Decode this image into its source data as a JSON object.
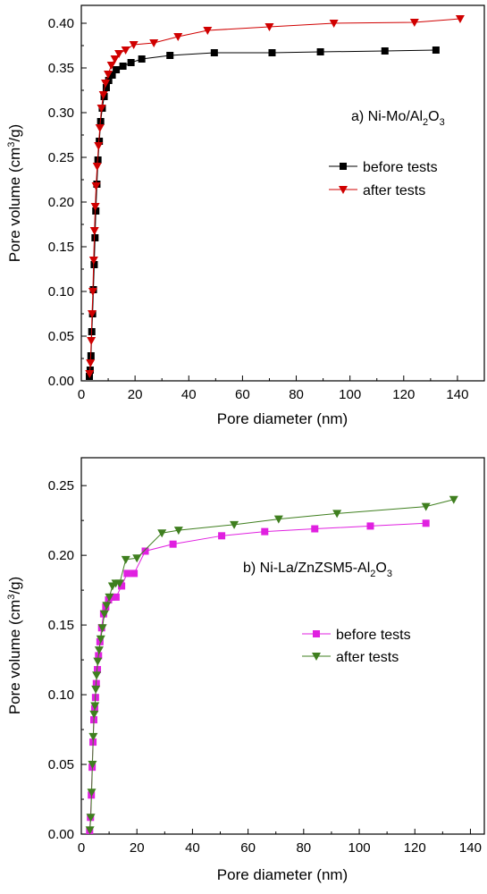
{
  "chart_data": [
    {
      "type": "line",
      "annotation": {
        "prefix": "a) Ni-Mo/Al",
        "sub1": "2",
        "mid": "O",
        "sub2": "3"
      },
      "xlabel": "Pore diameter (nm)",
      "ylabel": {
        "main": "Pore volume (cm",
        "sup": "3",
        "tail": "/g)"
      },
      "xlim": [
        0,
        150
      ],
      "ylim": [
        0,
        0.42
      ],
      "xticks": [
        0,
        20,
        40,
        60,
        80,
        100,
        120,
        140
      ],
      "xtick_labels": [
        "0",
        "20",
        "40",
        "60",
        "80",
        "100",
        "120",
        "140"
      ],
      "yticks": [
        0.0,
        0.05,
        0.1,
        0.15,
        0.2,
        0.25,
        0.3,
        0.35,
        0.4
      ],
      "ytick_labels": [
        "0.00",
        "0.05",
        "0.10",
        "0.15",
        "0.20",
        "0.25",
        "0.30",
        "0.35",
        "0.40"
      ],
      "legend_position": "middle-right",
      "series": [
        {
          "name": "before tests",
          "color": "#000000",
          "marker": "square",
          "x": [
            3.0,
            3.3,
            3.6,
            3.9,
            4.2,
            4.5,
            4.8,
            5.1,
            5.4,
            5.8,
            6.2,
            6.7,
            7.2,
            7.8,
            8.5,
            9.3,
            10.2,
            11.5,
            13.0,
            15.5,
            18.5,
            22.5,
            33.0,
            49.5,
            71.0,
            89.0,
            113.0,
            132.0
          ],
          "y": [
            0.005,
            0.012,
            0.028,
            0.055,
            0.075,
            0.102,
            0.13,
            0.16,
            0.19,
            0.22,
            0.247,
            0.268,
            0.29,
            0.305,
            0.318,
            0.328,
            0.336,
            0.342,
            0.348,
            0.352,
            0.356,
            0.36,
            0.364,
            0.367,
            0.367,
            0.368,
            0.369,
            0.37
          ]
        },
        {
          "name": "after tests",
          "color": "#d00000",
          "marker": "triangle-down",
          "x": [
            3.1,
            3.4,
            3.7,
            4.0,
            4.3,
            4.6,
            4.9,
            5.2,
            5.5,
            5.9,
            6.4,
            6.9,
            7.5,
            8.2,
            9.0,
            10.0,
            11.2,
            12.5,
            14.0,
            16.5,
            19.5,
            27.0,
            36.0,
            47.0,
            70.0,
            94.0,
            124.0,
            141.0
          ],
          "y": [
            0.008,
            0.02,
            0.045,
            0.075,
            0.1,
            0.135,
            0.168,
            0.195,
            0.218,
            0.24,
            0.263,
            0.283,
            0.305,
            0.32,
            0.333,
            0.343,
            0.353,
            0.36,
            0.366,
            0.37,
            0.376,
            0.378,
            0.385,
            0.392,
            0.396,
            0.4,
            0.401,
            0.405
          ]
        }
      ]
    },
    {
      "type": "line",
      "annotation": {
        "prefix": "b) Ni-La/ZnZSM5-Al",
        "sub1": "2",
        "mid": "O",
        "sub2": "3"
      },
      "xlabel": "Pore diameter (nm)",
      "ylabel": {
        "main": "Pore volume (cm",
        "sup": "3",
        "tail": "/g)"
      },
      "xlim": [
        0,
        145
      ],
      "ylim": [
        0,
        0.27
      ],
      "xticks": [
        0,
        20,
        40,
        60,
        80,
        100,
        120,
        140
      ],
      "xtick_labels": [
        "0",
        "20",
        "40",
        "60",
        "80",
        "100",
        "120",
        "140"
      ],
      "yticks": [
        0.0,
        0.05,
        0.1,
        0.15,
        0.2,
        0.25
      ],
      "ytick_labels": [
        "0.00",
        "0.05",
        "0.10",
        "0.15",
        "0.20",
        "0.25"
      ],
      "legend_position": "middle-right",
      "series": [
        {
          "name": "before tests",
          "color": "#e020e0",
          "marker": "square",
          "x": [
            3.0,
            3.3,
            3.6,
            3.9,
            4.2,
            4.5,
            4.8,
            5.1,
            5.4,
            5.8,
            6.2,
            6.7,
            7.3,
            8.0,
            8.8,
            9.8,
            11.0,
            12.5,
            14.5,
            16.5,
            19.0,
            23.0,
            33.0,
            50.5,
            66.0,
            84.0,
            104.0,
            124.0
          ],
          "y": [
            0.002,
            0.012,
            0.028,
            0.048,
            0.066,
            0.082,
            0.09,
            0.098,
            0.108,
            0.118,
            0.128,
            0.138,
            0.148,
            0.158,
            0.163,
            0.168,
            0.17,
            0.17,
            0.178,
            0.187,
            0.187,
            0.203,
            0.208,
            0.214,
            0.217,
            0.219,
            0.221,
            0.223
          ]
        },
        {
          "name": "after tests",
          "color": "#3f7f1f",
          "marker": "triangle-down",
          "x": [
            3.1,
            3.4,
            3.7,
            4.0,
            4.3,
            4.6,
            4.9,
            5.2,
            5.5,
            5.9,
            6.4,
            7.0,
            7.6,
            8.3,
            9.1,
            10.1,
            11.2,
            12.4,
            13.8,
            16.0,
            20.0,
            29.0,
            35.0,
            55.0,
            71.0,
            92.0,
            124.0,
            134.0
          ],
          "y": [
            0.003,
            0.012,
            0.03,
            0.05,
            0.07,
            0.086,
            0.092,
            0.104,
            0.114,
            0.124,
            0.132,
            0.14,
            0.148,
            0.158,
            0.164,
            0.17,
            0.178,
            0.18,
            0.18,
            0.197,
            0.198,
            0.216,
            0.218,
            0.222,
            0.226,
            0.23,
            0.235,
            0.24
          ]
        }
      ]
    }
  ]
}
